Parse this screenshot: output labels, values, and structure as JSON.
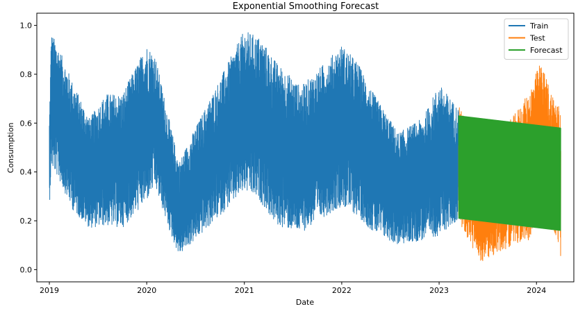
{
  "chart_data": {
    "type": "line",
    "title": "Exponential Smoothing Forecast",
    "xlabel": "Date",
    "ylabel": "Consumption",
    "xlim": [
      "2018-11-15",
      "2024-05-20"
    ],
    "ylim": [
      -0.05,
      1.05
    ],
    "x_ticks": [
      "2019",
      "2020",
      "2021",
      "2022",
      "2023",
      "2024"
    ],
    "y_ticks": [
      "0.0",
      "0.2",
      "0.4",
      "0.6",
      "0.8",
      "1.0"
    ],
    "grid": false,
    "legend_position": "top-right",
    "series": [
      {
        "name": "Train",
        "color": "#1f77b4",
        "date_range": [
          "2019-01-01",
          "2023-03-15"
        ],
        "envelope": [
          {
            "date": "2019-01-01",
            "low": 0.25,
            "high": 0.62
          },
          {
            "date": "2019-01-08",
            "low": 0.42,
            "high": 0.97
          },
          {
            "date": "2019-02-01",
            "low": 0.38,
            "high": 0.92
          },
          {
            "date": "2019-04-01",
            "low": 0.24,
            "high": 0.76
          },
          {
            "date": "2019-06-01",
            "low": 0.17,
            "high": 0.62
          },
          {
            "date": "2019-08-01",
            "low": 0.18,
            "high": 0.72
          },
          {
            "date": "2019-10-01",
            "low": 0.17,
            "high": 0.72
          },
          {
            "date": "2020-01-01",
            "low": 0.28,
            "high": 0.92
          },
          {
            "date": "2020-02-01",
            "low": 0.34,
            "high": 0.88
          },
          {
            "date": "2020-04-01",
            "low": 0.14,
            "high": 0.58
          },
          {
            "date": "2020-05-01",
            "low": 0.06,
            "high": 0.44
          },
          {
            "date": "2020-07-01",
            "low": 0.12,
            "high": 0.58
          },
          {
            "date": "2020-10-01",
            "low": 0.22,
            "high": 0.78
          },
          {
            "date": "2021-01-01",
            "low": 0.32,
            "high": 0.98
          },
          {
            "date": "2021-03-01",
            "low": 0.28,
            "high": 0.95
          },
          {
            "date": "2021-05-01",
            "low": 0.18,
            "high": 0.85
          },
          {
            "date": "2021-08-01",
            "low": 0.15,
            "high": 0.75
          },
          {
            "date": "2021-11-01",
            "low": 0.22,
            "high": 0.85
          },
          {
            "date": "2022-01-01",
            "low": 0.26,
            "high": 0.92
          },
          {
            "date": "2022-03-01",
            "low": 0.22,
            "high": 0.85
          },
          {
            "date": "2022-05-01",
            "low": 0.15,
            "high": 0.72
          },
          {
            "date": "2022-08-01",
            "low": 0.1,
            "high": 0.56
          },
          {
            "date": "2022-11-01",
            "low": 0.12,
            "high": 0.62
          },
          {
            "date": "2023-01-01",
            "low": 0.14,
            "high": 0.76
          },
          {
            "date": "2023-03-15",
            "low": 0.2,
            "high": 0.66
          }
        ]
      },
      {
        "name": "Test",
        "color": "#ff7f0e",
        "date_range": [
          "2023-03-15",
          "2024-04-01"
        ],
        "envelope": [
          {
            "date": "2023-03-15",
            "low": 0.2,
            "high": 0.67
          },
          {
            "date": "2023-06-01",
            "low": 0.03,
            "high": 0.5
          },
          {
            "date": "2023-08-01",
            "low": 0.06,
            "high": 0.58
          },
          {
            "date": "2023-10-01",
            "low": 0.1,
            "high": 0.62
          },
          {
            "date": "2023-12-01",
            "low": 0.12,
            "high": 0.72
          },
          {
            "date": "2024-01-15",
            "low": 0.22,
            "high": 0.85
          },
          {
            "date": "2024-03-01",
            "low": 0.16,
            "high": 0.72
          },
          {
            "date": "2024-04-01",
            "low": 0.04,
            "high": 0.66
          }
        ]
      },
      {
        "name": "Forecast",
        "color": "#2ca02c",
        "date_range": [
          "2023-03-15",
          "2024-04-01"
        ],
        "envelope": [
          {
            "date": "2023-03-15",
            "low": 0.21,
            "high": 0.63
          },
          {
            "date": "2024-04-01",
            "low": 0.16,
            "high": 0.58
          }
        ]
      }
    ]
  }
}
